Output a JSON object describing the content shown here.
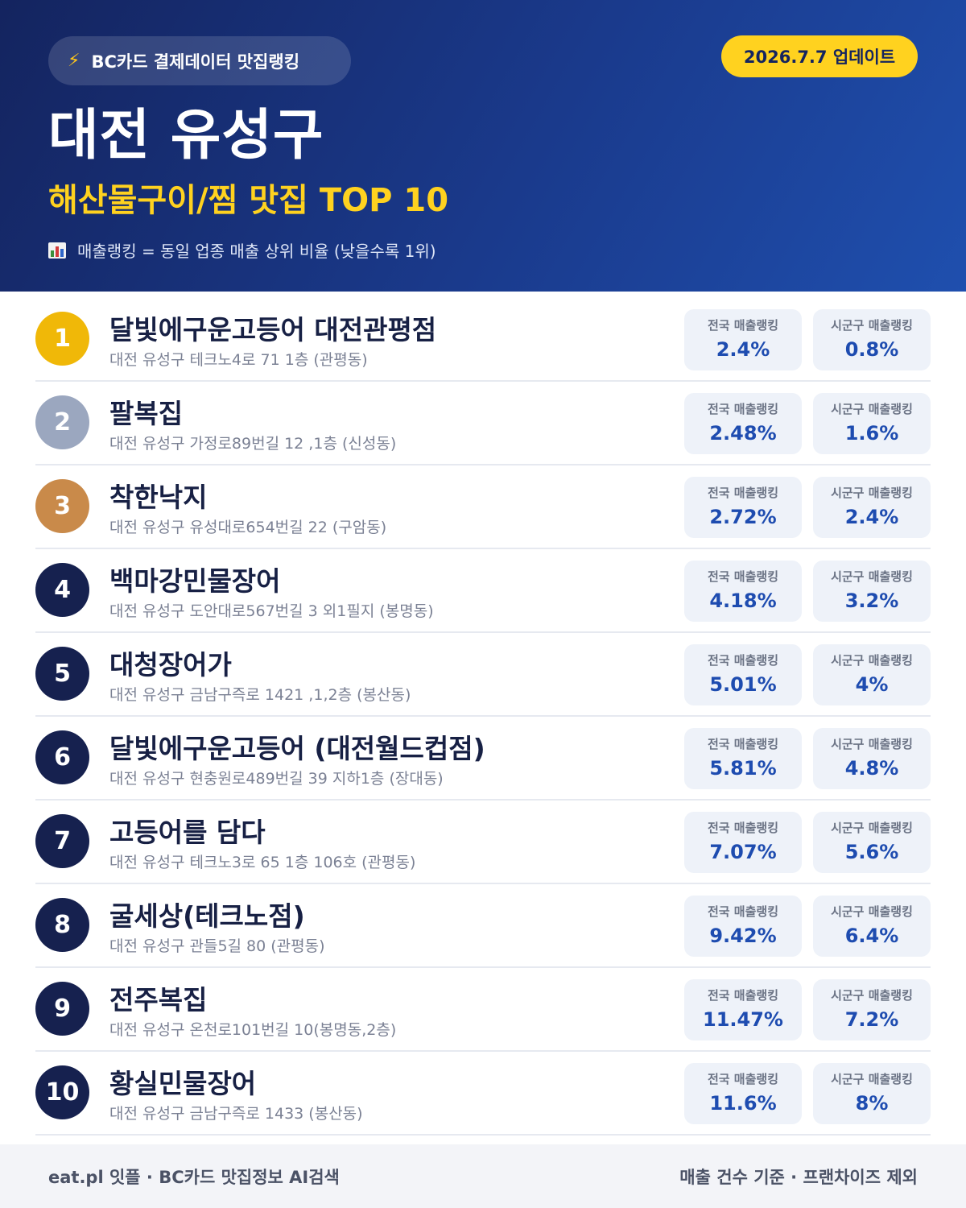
{
  "header": {
    "badge": "BC카드 결제데이터 맛집랭킹",
    "badge_icon": "lightning-icon",
    "update": "2026.7.7 업데이트",
    "city": "대전 유성구",
    "subtitle": "해산물구이/찜 맛집 TOP 10",
    "legend": "매출랭킹 = 동일 업종 매출 상위 비율 (낮을수록 1위)",
    "legend_icon": "bar-chart-icon"
  },
  "labels": {
    "national": "전국 매출랭킹",
    "local": "시군구 매출랭킹"
  },
  "colors": {
    "gold": "#f0b808",
    "silver": "#9ba7bf",
    "bronze": "#c98a4a",
    "navy": "#16214f",
    "accent_yellow": "#ffd21f",
    "value_blue": "#1e4cb0"
  },
  "restaurants": [
    {
      "rank": "1",
      "name": "달빛에구운고등어 대전관평점",
      "address": "대전 유성구 테크노4로 71 1층 (관평동)",
      "national": "2.4%",
      "local": "0.8%"
    },
    {
      "rank": "2",
      "name": "팔복집",
      "address": "대전 유성구 가정로89번길 12 ,1층 (신성동)",
      "national": "2.48%",
      "local": "1.6%"
    },
    {
      "rank": "3",
      "name": "착한낙지",
      "address": "대전 유성구 유성대로654번길 22 (구암동)",
      "national": "2.72%",
      "local": "2.4%"
    },
    {
      "rank": "4",
      "name": "백마강민물장어",
      "address": "대전 유성구 도안대로567번길 3 외1필지 (봉명동)",
      "national": "4.18%",
      "local": "3.2%"
    },
    {
      "rank": "5",
      "name": "대청장어가",
      "address": "대전 유성구 금남구즉로 1421 ,1,2층 (봉산동)",
      "national": "5.01%",
      "local": "4%"
    },
    {
      "rank": "6",
      "name": "달빛에구운고등어 (대전월드컵점)",
      "address": "대전 유성구 현충원로489번길 39 지하1층 (장대동)",
      "national": "5.81%",
      "local": "4.8%"
    },
    {
      "rank": "7",
      "name": "고등어를 담다",
      "address": "대전 유성구 테크노3로 65 1층 106호 (관평동)",
      "national": "7.07%",
      "local": "5.6%"
    },
    {
      "rank": "8",
      "name": "굴세상(테크노점)",
      "address": "대전 유성구 관들5길 80 (관평동)",
      "national": "9.42%",
      "local": "6.4%"
    },
    {
      "rank": "9",
      "name": "전주복집",
      "address": "대전 유성구 온천로101번길 10(봉명동,2층)",
      "national": "11.47%",
      "local": "7.2%"
    },
    {
      "rank": "10",
      "name": "황실민물장어",
      "address": "대전 유성구 금남구즉로 1433 (봉산동)",
      "national": "11.6%",
      "local": "8%"
    }
  ],
  "footer": {
    "left": "eat.pl 잇플 · BC카드 맛집정보 AI검색",
    "right": "매출 건수 기준 · 프랜차이즈 제외"
  }
}
